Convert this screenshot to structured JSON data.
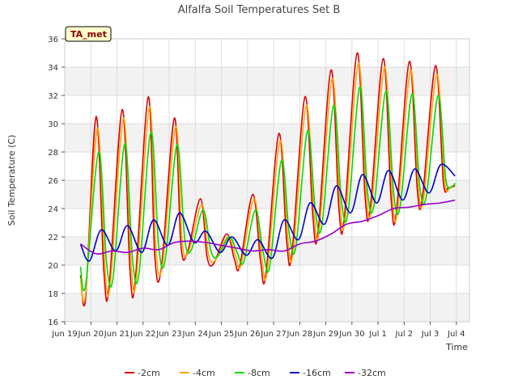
{
  "chart_data": {
    "type": "line",
    "title": "Alfalfa Soil Temperatures Set B",
    "xlabel": "Time",
    "ylabel": "Soil Temperature (C)",
    "site_badge": "TA_met",
    "ylim": [
      16,
      36
    ],
    "yticks": [
      16,
      18,
      20,
      22,
      24,
      26,
      28,
      30,
      32,
      34,
      36
    ],
    "xlim": [
      0,
      15.5
    ],
    "xticks": [
      {
        "x": 0,
        "label": "Jun 19"
      },
      {
        "x": 1,
        "label": "Jun 20"
      },
      {
        "x": 2,
        "label": "Jun 21"
      },
      {
        "x": 3,
        "label": "Jun 22"
      },
      {
        "x": 4,
        "label": "Jun 23"
      },
      {
        "x": 5,
        "label": "Jun 24"
      },
      {
        "x": 6,
        "label": "Jun 25"
      },
      {
        "x": 7,
        "label": "Jun 26"
      },
      {
        "x": 8,
        "label": "Jun 27"
      },
      {
        "x": 9,
        "label": "Jun 28"
      },
      {
        "x": 10,
        "label": "Jun 29"
      },
      {
        "x": 11,
        "label": "Jun 30"
      },
      {
        "x": 12,
        "label": "Jul 1"
      },
      {
        "x": 13,
        "label": "Jul 2"
      },
      {
        "x": 14,
        "label": "Jul 3"
      },
      {
        "x": 15,
        "label": "Jul 4"
      }
    ],
    "grid": true,
    "legend_position": "bottom",
    "series": [
      {
        "name": "-2cm",
        "color": "#dd0000",
        "x": [
          0.6,
          0.8,
          1.2,
          1.5,
          1.7,
          2.2,
          2.5,
          2.7,
          3.2,
          3.45,
          3.7,
          4.2,
          4.45,
          4.7,
          5.2,
          5.45,
          5.7,
          6.2,
          6.5,
          6.7,
          7.2,
          7.5,
          7.7,
          8.2,
          8.5,
          8.7,
          9.2,
          9.5,
          9.7,
          10.2,
          10.5,
          10.7,
          11.2,
          11.5,
          11.7,
          12.2,
          12.5,
          12.7,
          13.2,
          13.5,
          13.7,
          14.2,
          14.5,
          14.7,
          14.95
        ],
        "y": [
          19.3,
          17.7,
          30.5,
          19.5,
          18.5,
          31.0,
          19.6,
          18.9,
          31.9,
          20.6,
          19.8,
          30.4,
          21.4,
          20.9,
          24.7,
          20.6,
          20.1,
          22.2,
          20.4,
          19.9,
          25.0,
          20.3,
          19.3,
          29.3,
          21.7,
          20.8,
          31.9,
          23.5,
          22.3,
          33.8,
          24.0,
          23.2,
          35.0,
          24.9,
          24.0,
          34.6,
          24.7,
          23.7,
          34.4,
          25.4,
          24.8,
          34.1,
          25.9,
          25.5,
          25.6
        ]
      },
      {
        "name": "-4cm",
        "color": "#ffa500",
        "x": [
          0.6,
          0.8,
          1.25,
          1.55,
          1.75,
          2.25,
          2.55,
          2.75,
          3.25,
          3.5,
          3.75,
          4.25,
          4.5,
          4.75,
          5.25,
          5.5,
          5.75,
          6.25,
          6.55,
          6.75,
          7.25,
          7.55,
          7.75,
          8.25,
          8.55,
          8.75,
          9.25,
          9.55,
          9.75,
          10.25,
          10.55,
          10.75,
          11.25,
          11.55,
          11.75,
          12.25,
          12.55,
          12.75,
          13.25,
          13.55,
          13.75,
          14.25,
          14.55,
          14.75,
          14.95
        ],
        "y": [
          19.1,
          18.0,
          29.7,
          19.6,
          18.8,
          30.4,
          19.8,
          19.2,
          31.2,
          20.9,
          20.1,
          29.8,
          21.6,
          21.0,
          24.3,
          20.8,
          20.3,
          22.0,
          20.6,
          20.0,
          24.7,
          20.5,
          19.5,
          28.8,
          21.8,
          21.0,
          31.3,
          23.6,
          22.5,
          33.2,
          24.2,
          23.4,
          34.3,
          25.0,
          24.1,
          34.0,
          24.8,
          23.9,
          33.8,
          25.4,
          24.8,
          33.5,
          25.9,
          25.5,
          25.7
        ]
      },
      {
        "name": "-8cm",
        "color": "#00dd00",
        "x": [
          0.6,
          0.8,
          1.3,
          1.6,
          1.85,
          2.3,
          2.6,
          2.85,
          3.3,
          3.6,
          3.85,
          4.3,
          4.6,
          4.85,
          5.3,
          5.6,
          5.85,
          6.3,
          6.6,
          6.85,
          7.3,
          7.6,
          7.85,
          8.3,
          8.6,
          8.85,
          9.3,
          9.6,
          9.85,
          10.3,
          10.6,
          10.85,
          11.3,
          11.6,
          11.85,
          12.3,
          12.6,
          12.85,
          13.3,
          13.6,
          13.85,
          14.3,
          14.6,
          14.85,
          14.95
        ],
        "y": [
          19.9,
          18.6,
          28.0,
          20.2,
          19.1,
          28.6,
          20.3,
          19.5,
          29.4,
          21.3,
          20.4,
          28.5,
          21.8,
          21.1,
          23.9,
          21.0,
          20.6,
          22.0,
          20.9,
          20.2,
          23.9,
          20.9,
          19.9,
          27.4,
          22.2,
          21.3,
          29.5,
          23.8,
          22.8,
          31.3,
          24.5,
          23.7,
          32.6,
          25.1,
          24.3,
          32.3,
          25.0,
          24.2,
          32.1,
          25.5,
          24.9,
          32.0,
          26.0,
          25.6,
          25.8
        ]
      },
      {
        "name": "-16cm",
        "color": "#0000cc",
        "x": [
          0.6,
          0.95,
          1.4,
          1.95,
          2.4,
          2.95,
          3.4,
          3.95,
          4.4,
          4.95,
          5.4,
          5.95,
          6.4,
          6.95,
          7.4,
          7.95,
          8.4,
          8.95,
          9.4,
          9.95,
          10.4,
          10.95,
          11.4,
          11.95,
          12.4,
          12.95,
          13.4,
          13.95,
          14.4,
          14.95
        ],
        "y": [
          21.5,
          20.3,
          22.5,
          21.0,
          22.8,
          20.9,
          23.2,
          21.4,
          23.7,
          21.6,
          22.4,
          20.9,
          22.0,
          20.7,
          21.8,
          20.5,
          23.2,
          21.8,
          24.4,
          22.9,
          25.6,
          23.7,
          26.4,
          24.4,
          26.7,
          24.6,
          26.8,
          25.1,
          27.1,
          26.3
        ]
      },
      {
        "name": "-32cm",
        "color": "#9900cc",
        "x": [
          0.6,
          1.2,
          1.8,
          2.4,
          3.0,
          3.6,
          4.2,
          4.8,
          5.4,
          6.0,
          6.6,
          7.2,
          7.8,
          8.4,
          9.0,
          9.6,
          10.2,
          10.8,
          11.4,
          12.0,
          12.6,
          13.2,
          13.8,
          14.4,
          14.95
        ],
        "y": [
          21.5,
          20.8,
          21.0,
          20.9,
          21.2,
          21.1,
          21.6,
          21.7,
          21.6,
          21.4,
          21.2,
          21.0,
          21.1,
          21.0,
          21.5,
          21.7,
          22.2,
          22.9,
          23.1,
          23.5,
          24.0,
          24.1,
          24.3,
          24.4,
          24.6
        ]
      }
    ]
  }
}
